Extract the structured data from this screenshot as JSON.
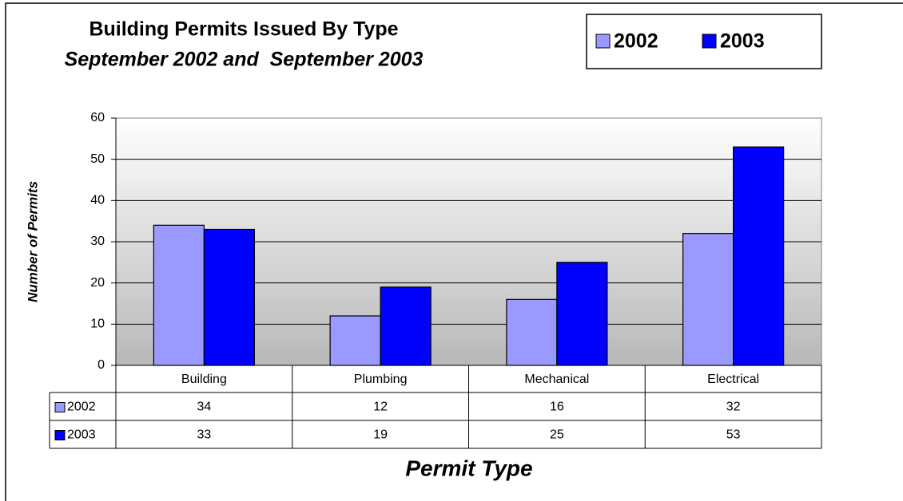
{
  "chart_data": {
    "type": "bar",
    "title": "Building Permits Issued By Type",
    "subtitle": "September 2002 and  September 2003",
    "x_label": "Permit Type",
    "y_label": "Number of Permits",
    "categories": [
      "Building",
      "Plumbing",
      "Mechanical",
      "Electrical"
    ],
    "series": [
      {
        "name": "2002",
        "color": "#9999ff",
        "values": [
          34,
          12,
          16,
          32
        ]
      },
      {
        "name": "2003",
        "color": "#0000ff",
        "values": [
          33,
          19,
          25,
          53
        ]
      }
    ],
    "ylim": [
      0,
      60
    ],
    "yticks": [
      0,
      10,
      20,
      30,
      40,
      50,
      60
    ],
    "grid": true,
    "legend": "top-right"
  }
}
